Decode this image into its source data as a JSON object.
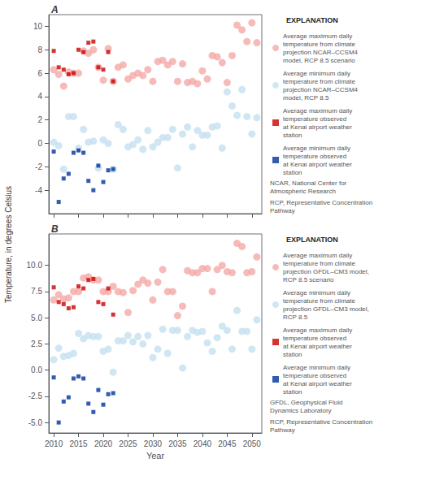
{
  "chart_data": [
    {
      "type": "scatter",
      "title": "A",
      "ylabel": "Temperature, in degrees Celsius",
      "xlim": [
        2009,
        2052
      ],
      "xticks": [
        2010,
        2015,
        2020,
        2025,
        2030,
        2035,
        2040,
        2045,
        2050
      ],
      "ylim": [
        -6,
        11
      ],
      "yticks": [
        -4,
        -2,
        0,
        2,
        4,
        6,
        8,
        10
      ],
      "grid": false,
      "tick_labels": "y",
      "legend_title": "EXPLANATION",
      "annotations": [
        "NCAR, National Center for\nAtmospheric Research",
        "RCP, Representative Concentration\nPathway"
      ],
      "series": [
        {
          "name": "Average maximum daily\ntemperature from climate\nprojection NCAR–CCSM4\nmodel, RCP 8.5 scenario",
          "color": "#F4A9A8",
          "marker": "circle",
          "x": [
            2010,
            2011,
            2012,
            2013,
            2014,
            2015,
            2016,
            2017,
            2018,
            2019,
            2020,
            2021,
            2022,
            2023,
            2024,
            2025,
            2026,
            2027,
            2028,
            2029,
            2030,
            2031,
            2032,
            2033,
            2034,
            2035,
            2036,
            2037,
            2038,
            2039,
            2040,
            2041,
            2042,
            2043,
            2044,
            2045,
            2046,
            2047,
            2048,
            2049,
            2050,
            2051
          ],
          "values": [
            6.3,
            5.9,
            4.9,
            6.1,
            6.0,
            6.0,
            7.9,
            7.7,
            8.0,
            6.5,
            5.4,
            8.1,
            5.3,
            6.5,
            6.7,
            5.5,
            5.8,
            6.0,
            5.8,
            6.3,
            5.3,
            7.0,
            7.1,
            6.7,
            7.0,
            5.3,
            6.8,
            5.2,
            5.3,
            5.1,
            6.2,
            5.5,
            7.5,
            7.4,
            6.9,
            5.2,
            7.5,
            10.1,
            9.7,
            8.7,
            10.3,
            8.6
          ]
        },
        {
          "name": "Average minimum daily\ntemperature from climate\nprojection NCAR–CCSM4\nmodel, RCP 8.5",
          "color": "#C5E0F0",
          "marker": "circle",
          "x": [
            2010,
            2011,
            2012,
            2013,
            2014,
            2015,
            2016,
            2017,
            2018,
            2019,
            2020,
            2021,
            2022,
            2023,
            2024,
            2025,
            2026,
            2027,
            2028,
            2029,
            2030,
            2031,
            2032,
            2033,
            2034,
            2035,
            2036,
            2037,
            2038,
            2039,
            2040,
            2041,
            2042,
            2043,
            2044,
            2045,
            2046,
            2047,
            2048,
            2049,
            2050,
            2051
          ],
          "values": [
            0.1,
            -0.2,
            -2.2,
            2.3,
            2.3,
            -0.4,
            1.2,
            0.1,
            0.2,
            -2.1,
            0.3,
            0.0,
            -2.2,
            1.6,
            1.2,
            -0.3,
            -0.1,
            0.3,
            -0.5,
            1.1,
            -0.3,
            0.1,
            0.5,
            0.5,
            1.2,
            -2.1,
            0.8,
            1.4,
            -0.3,
            1.1,
            0.7,
            0.7,
            1.4,
            1.5,
            -0.4,
            4.4,
            3.2,
            2.4,
            4.6,
            2.3,
            0.8,
            2.2
          ]
        },
        {
          "name": "Average maximum daily\ntemperature observed\nat Kenai airport weather\nstation",
          "color": "#CC0000",
          "marker": "square",
          "x": [
            2010,
            2011,
            2012,
            2013,
            2014,
            2015,
            2016,
            2017,
            2018,
            2019,
            2020,
            2021,
            2022
          ],
          "values": [
            7.9,
            6.5,
            6.3,
            5.9,
            6.0,
            8.0,
            7.8,
            8.6,
            8.7,
            6.5,
            6.3,
            7.8,
            5.3
          ]
        },
        {
          "name": "Average minimum daily\ntemperature observed\nat Kenai airport weather\nstation",
          "color": "#003399",
          "marker": "square",
          "x": [
            2010,
            2011,
            2012,
            2013,
            2014,
            2015,
            2016,
            2017,
            2018,
            2019,
            2020,
            2021,
            2022
          ],
          "values": [
            -0.7,
            -5.0,
            -3.0,
            -2.6,
            -0.8,
            -0.6,
            -0.8,
            -3.2,
            -4.0,
            -1.9,
            -3.3,
            -2.3,
            -2.2
          ]
        }
      ]
    },
    {
      "type": "scatter",
      "title": "B",
      "xlabel": "Year",
      "xlim": [
        2009,
        2052
      ],
      "xticks": [
        2010,
        2015,
        2020,
        2025,
        2030,
        2035,
        2040,
        2045,
        2050
      ],
      "ylim": [
        -6,
        13
      ],
      "yticks": [
        {
          "value": -5.0,
          "label": "-5.0"
        },
        -2.5,
        {
          "value": 0.0,
          "label": "0.0"
        },
        2.5,
        {
          "value": 5.0,
          "label": "5.0"
        },
        7.5,
        {
          "value": 10.0,
          "label": "10.0"
        }
      ],
      "grid": false,
      "legend_title": "EXPLANATION",
      "annotations": [
        "GFDL, Geophysical Fluid\nDynamics Laboratory",
        "RCP, Representative Concentration\nPathway"
      ],
      "series": [
        {
          "name": "Average maximum daily\ntemperature from climate\nprojection GFDL–CM3 model,\nRCP 8.5 scenario",
          "color": "#F4A9A8",
          "marker": "circle",
          "x": [
            2010,
            2011,
            2012,
            2013,
            2014,
            2015,
            2016,
            2017,
            2018,
            2019,
            2020,
            2021,
            2022,
            2023,
            2024,
            2025,
            2026,
            2027,
            2028,
            2029,
            2030,
            2031,
            2032,
            2033,
            2034,
            2035,
            2036,
            2037,
            2038,
            2039,
            2040,
            2041,
            2042,
            2043,
            2044,
            2045,
            2046,
            2047,
            2048,
            2049,
            2050,
            2051
          ],
          "values": [
            6.7,
            7.2,
            6.8,
            6.9,
            7.5,
            7.5,
            8.8,
            8.9,
            8.6,
            8.6,
            7.5,
            7.5,
            8.0,
            7.5,
            7.4,
            5.5,
            7.6,
            8.2,
            8.6,
            8.3,
            6.7,
            8.4,
            9.6,
            7.5,
            7.5,
            5.2,
            6.1,
            9.5,
            9.3,
            9.3,
            9.7,
            9.7,
            7.5,
            9.6,
            10.0,
            9.4,
            9.3,
            12.1,
            11.8,
            9.3,
            9.4,
            10.8
          ]
        },
        {
          "name": "Average minimum daily\ntemperature from climate\nprojection GFDL–CM3 model,\nRCP 8.5",
          "color": "#C5E0F0",
          "marker": "circle",
          "x": [
            2010,
            2011,
            2012,
            2013,
            2014,
            2015,
            2016,
            2017,
            2018,
            2019,
            2020,
            2021,
            2022,
            2023,
            2024,
            2025,
            2026,
            2027,
            2028,
            2029,
            2030,
            2031,
            2032,
            2033,
            2034,
            2035,
            2036,
            2037,
            2038,
            2039,
            2040,
            2041,
            2042,
            2043,
            2044,
            2045,
            2046,
            2047,
            2048,
            2049,
            2050,
            2051
          ],
          "values": [
            1.0,
            2.1,
            1.3,
            1.4,
            1.6,
            3.5,
            3.0,
            3.3,
            3.2,
            3.2,
            1.8,
            2.0,
            -0.2,
            2.8,
            2.8,
            3.3,
            2.7,
            3.2,
            2.5,
            3.3,
            1.2,
            2.0,
            3.9,
            1.6,
            3.8,
            3.8,
            0.2,
            3.2,
            3.8,
            3.6,
            3.7,
            2.6,
            1.8,
            3.1,
            4.2,
            3.8,
            2.0,
            5.7,
            3.7,
            3.7,
            2.0,
            4.8
          ]
        },
        {
          "name": "Average maximum daily\ntemperature observed\nat Kenai airport weather\nstation",
          "color": "#CC0000",
          "marker": "square",
          "x": [
            2010,
            2011,
            2012,
            2013,
            2014,
            2015,
            2016,
            2017,
            2018,
            2019,
            2020,
            2021,
            2022
          ],
          "values": [
            7.9,
            6.5,
            6.3,
            5.9,
            6.0,
            8.0,
            7.8,
            8.6,
            8.7,
            6.5,
            6.3,
            7.8,
            5.3
          ]
        },
        {
          "name": "Average minimum daily\ntemperature observed\nat Kenai airport weather\nstation",
          "color": "#003399",
          "marker": "square",
          "x": [
            2010,
            2011,
            2012,
            2013,
            2014,
            2015,
            2016,
            2017,
            2018,
            2019,
            2020,
            2021,
            2022
          ],
          "values": [
            -0.7,
            -5.0,
            -3.0,
            -2.6,
            -0.8,
            -0.6,
            -0.8,
            -3.2,
            -4.0,
            -1.9,
            -3.3,
            -2.3,
            -2.2
          ]
        }
      ]
    }
  ]
}
